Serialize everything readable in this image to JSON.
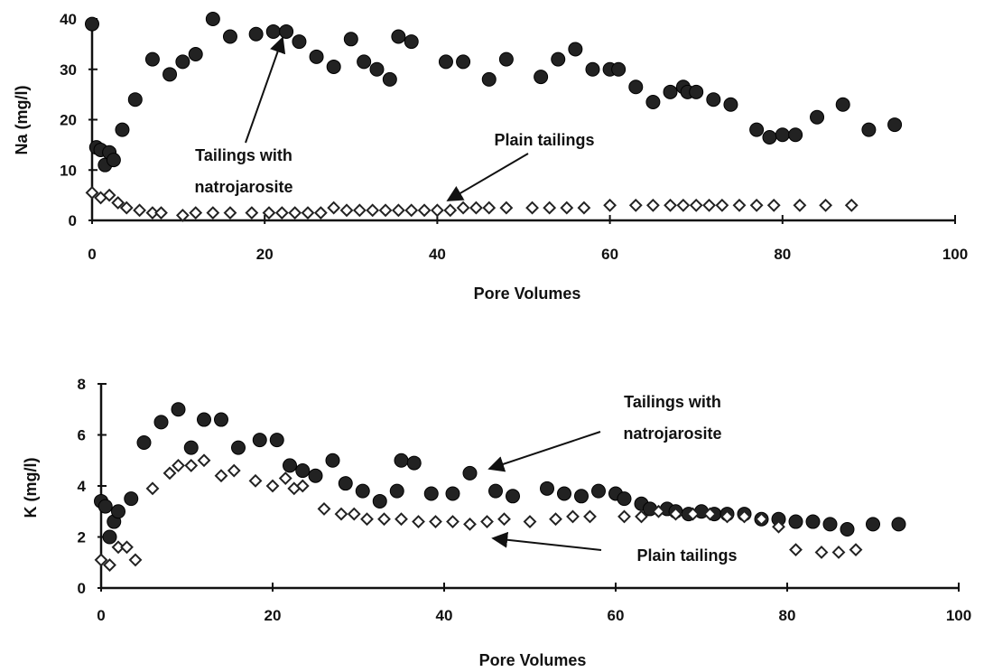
{
  "chart_data": [
    {
      "id": "na",
      "type": "scatter",
      "xlabel": "Pore Volumes",
      "ylabel": "Na (mg/l)",
      "xlim": [
        0,
        100
      ],
      "ylim": [
        0,
        40
      ],
      "xticks": [
        "0",
        "20",
        "40",
        "60",
        "80",
        "100"
      ],
      "yticks": [
        "0",
        "10",
        "20",
        "30",
        "40"
      ],
      "grid": false,
      "legend": "none",
      "series": [
        {
          "key": "natrojarosite",
          "marker": "filled-circle",
          "color": "#222222",
          "x": [
            0,
            0.5,
            1,
            1.5,
            2,
            2.5,
            3.5,
            5,
            7,
            9,
            10.5,
            12,
            14,
            16,
            19,
            21,
            22.5,
            24,
            26,
            28,
            30,
            31.5,
            33,
            34.5,
            35.5,
            37,
            41,
            43,
            46,
            48,
            52,
            54,
            56,
            58,
            60,
            61,
            63,
            65,
            67,
            68.5,
            69,
            70,
            72,
            74,
            77,
            78.5,
            80,
            81.5,
            84,
            87,
            90,
            93
          ],
          "y": [
            39,
            14.5,
            14,
            11,
            13.5,
            12,
            18,
            24,
            32,
            29,
            31.5,
            33,
            40,
            36.5,
            37,
            37.5,
            37.5,
            35.5,
            32.5,
            30.5,
            36,
            31.5,
            30,
            28,
            36.5,
            35.5,
            31.5,
            31.5,
            28,
            32,
            28.5,
            32,
            34,
            30,
            30,
            30,
            26.5,
            23.5,
            25.5,
            26.5,
            25.5,
            25.5,
            24,
            23,
            18,
            16.5,
            17,
            17,
            20.5,
            23,
            18,
            19
          ]
        },
        {
          "key": "plain",
          "marker": "open-diamond",
          "color": "#222222",
          "x": [
            0,
            1,
            2,
            3,
            4,
            5.5,
            7,
            8,
            10.5,
            12,
            14,
            16,
            18.5,
            20.5,
            22,
            23.5,
            25,
            26.5,
            28,
            29.5,
            31,
            32.5,
            34,
            35.5,
            37,
            38.5,
            40,
            41.5,
            43,
            44.5,
            46,
            48,
            51,
            53,
            55,
            57,
            60,
            63,
            65,
            67,
            68.5,
            70,
            71.5,
            73,
            75,
            77,
            79,
            82,
            85,
            88
          ],
          "y": [
            5.5,
            4.5,
            5,
            3.5,
            2.5,
            2,
            1.5,
            1.5,
            1,
            1.5,
            1.5,
            1.5,
            1.5,
            1.5,
            1.5,
            1.5,
            1.5,
            1.5,
            2.5,
            2,
            2,
            2,
            2,
            2,
            2,
            2,
            2,
            2,
            2.5,
            2.5,
            2.5,
            2.5,
            2.5,
            2.5,
            2.5,
            2.5,
            3,
            3,
            3,
            3,
            3,
            3,
            3,
            3,
            3,
            3,
            3,
            3,
            3,
            3
          ]
        }
      ],
      "annotations": [
        {
          "lines": [
            "Tailings with",
            "natrojarosite"
          ],
          "arrow_to": [
            22,
            37.5
          ]
        },
        {
          "lines": [
            "Plain tailings"
          ],
          "arrow_to": [
            40,
            2
          ]
        }
      ]
    },
    {
      "id": "k",
      "type": "scatter",
      "xlabel": "Pore Volumes",
      "ylabel": "K (mg/l)",
      "xlim": [
        0,
        100
      ],
      "ylim": [
        0,
        8
      ],
      "xticks": [
        "0",
        "20",
        "40",
        "60",
        "80",
        "100"
      ],
      "yticks": [
        "0",
        "2",
        "4",
        "6",
        "8"
      ],
      "grid": false,
      "legend": "none",
      "series": [
        {
          "key": "natrojarosite",
          "marker": "filled-circle",
          "color": "#222222",
          "x": [
            0,
            0.5,
            1,
            1.5,
            2,
            3.5,
            5,
            7,
            9,
            10.5,
            12,
            14,
            16,
            18.5,
            20.5,
            22,
            23.5,
            25,
            27,
            28.5,
            30.5,
            32.5,
            34.5,
            35,
            36.5,
            38.5,
            41,
            43,
            46,
            48,
            52,
            54,
            56,
            58,
            60,
            61,
            63,
            64,
            66,
            67,
            68.5,
            70,
            71.5,
            73,
            75,
            77,
            79,
            81,
            83,
            85,
            87,
            90,
            93
          ],
          "y": [
            3.4,
            3.2,
            2,
            2.6,
            3,
            3.5,
            5.7,
            6.5,
            7,
            5.5,
            6.6,
            6.6,
            5.5,
            5.8,
            5.8,
            4.8,
            4.6,
            4.4,
            5,
            4.1,
            3.8,
            3.4,
            3.8,
            5,
            4.9,
            3.7,
            3.7,
            4.5,
            3.8,
            3.6,
            3.9,
            3.7,
            3.6,
            3.8,
            3.7,
            3.5,
            3.3,
            3.1,
            3.1,
            3,
            2.9,
            3,
            2.9,
            2.9,
            2.9,
            2.7,
            2.7,
            2.6,
            2.6,
            2.5,
            2.3,
            2.5,
            2.5
          ]
        },
        {
          "key": "plain",
          "marker": "open-diamond",
          "color": "#222222",
          "x": [
            0,
            1,
            2,
            3,
            4,
            6,
            8,
            9,
            10.5,
            12,
            14,
            15.5,
            18,
            20,
            21.5,
            22.5,
            23.5,
            26,
            28,
            29.5,
            31,
            33,
            35,
            37,
            39,
            41,
            43,
            45,
            47,
            50,
            53,
            55,
            57,
            61,
            63,
            65,
            67,
            69,
            71,
            73,
            75,
            77,
            79,
            81,
            84,
            86,
            88
          ],
          "y": [
            1.1,
            0.9,
            1.6,
            1.6,
            1.1,
            3.9,
            4.5,
            4.8,
            4.8,
            5,
            4.4,
            4.6,
            4.2,
            4,
            4.3,
            3.9,
            4,
            3.1,
            2.9,
            2.9,
            2.7,
            2.7,
            2.7,
            2.6,
            2.6,
            2.6,
            2.5,
            2.6,
            2.7,
            2.6,
            2.7,
            2.8,
            2.8,
            2.8,
            2.8,
            3,
            2.9,
            2.9,
            2.9,
            2.8,
            2.8,
            2.7,
            2.4,
            1.5,
            1.4,
            1.4,
            1.5
          ]
        }
      ],
      "annotations": [
        {
          "lines": [
            "Tailings with",
            "natrojarosite"
          ],
          "arrow_to": [
            43,
            4.5
          ]
        },
        {
          "lines": [
            "Plain tailings"
          ],
          "arrow_to": [
            47,
            2.5
          ]
        }
      ]
    }
  ]
}
